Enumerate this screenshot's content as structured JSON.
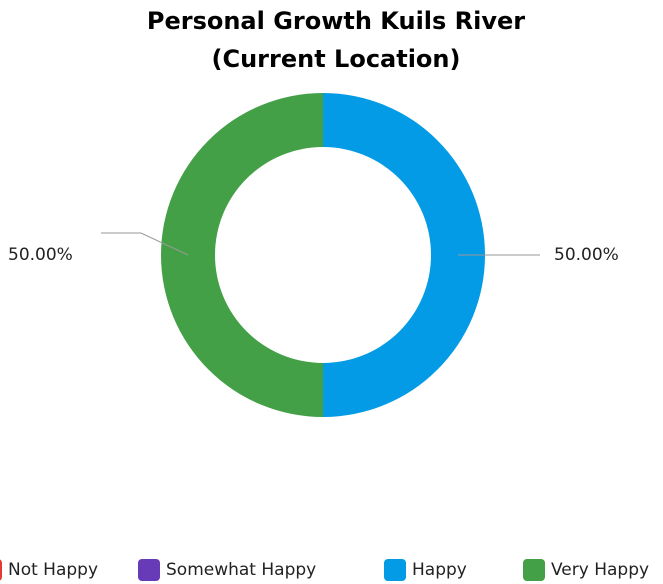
{
  "chart_data": {
    "type": "donut",
    "title": [
      "Personal Growth Kuils River",
      "(Current Location)"
    ],
    "categories": [
      "Not Happy",
      "Somewhat Happy",
      "Happy",
      "Very Happy"
    ],
    "values": [
      0,
      0,
      50,
      50
    ],
    "value_labels": [
      null,
      null,
      "50.00%",
      "50.00%"
    ],
    "colors": [
      "#e53935",
      "#673ab7",
      "#039be5",
      "#43a047"
    ],
    "legend": "bottom"
  }
}
